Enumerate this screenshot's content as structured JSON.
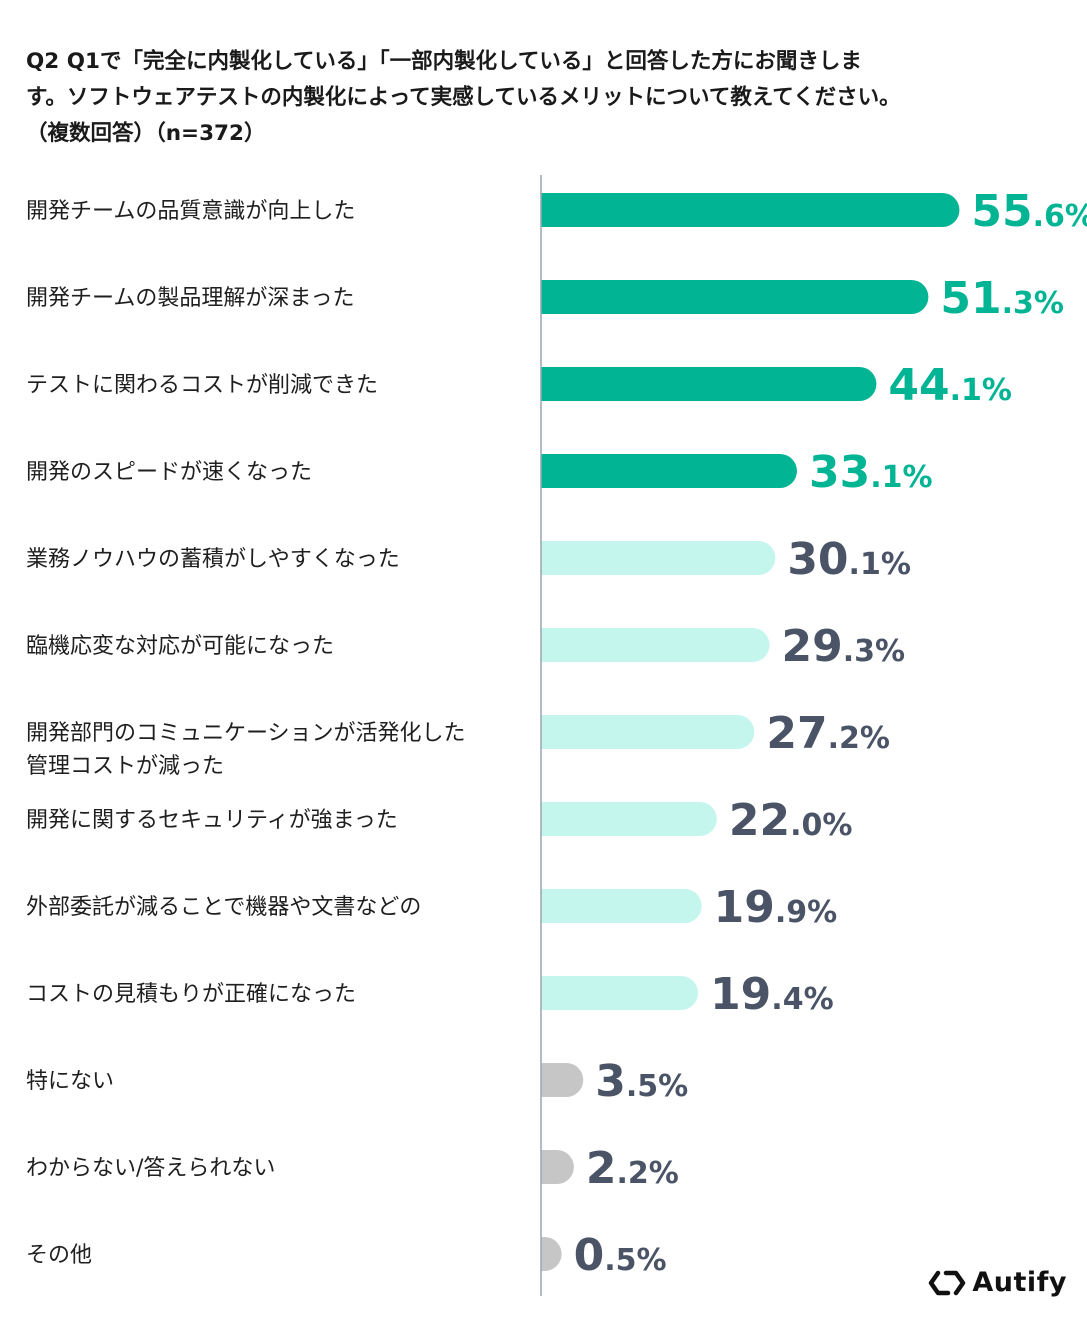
{
  "title_lines": [
    "Q2 Q1で「完全に内製化している」「一部内製化している」と回答した方にお聞きしま",
    "す。ソフトウェアテストの内製化によって実感しているメリットについて教えてください。",
    "（複数回答）（n=372）"
  ],
  "logo": {
    "text": "Autify",
    "icon": "autify-logo-icon"
  },
  "colors": {
    "dark_bar": "#00B494",
    "light_bar": "#C4F6EE",
    "gray_bar": "#C6C6C6",
    "dark_value": "#00B494",
    "light_value": "#4A5466",
    "axis": "#9aa6b2"
  },
  "chart_data": {
    "type": "bar",
    "orientation": "horizontal",
    "title": "Q2 Q1で「完全に内製化している」「一部内製化している」と回答した方にお聞きします。ソフトウェアテストの内製化によって実感しているメリットについて教えてください。（複数回答）（n=372）",
    "unit": "%",
    "categories": [
      [
        "開発チームの品質意識が向上した"
      ],
      [
        "開発チームの製品理解が深まった"
      ],
      [
        "テストに関わるコストが削減できた"
      ],
      [
        "開発のスピードが速くなった"
      ],
      [
        "業務ノウハウの蓄積がしやすくなった"
      ],
      [
        "臨機応変な対応が可能になった"
      ],
      [
        "開発部門のコミュニケーションが活発化した",
        "管理コストが減った"
      ],
      [
        "開発に関するセキュリティが強まった"
      ],
      [
        "外部委託が減ることで機器や文書などの"
      ],
      [
        "コストの見積もりが正確になった"
      ],
      [
        "特にない"
      ],
      [
        "わからない/答えられない"
      ],
      [
        "その他"
      ]
    ],
    "values": [
      55.6,
      51.3,
      44.1,
      33.1,
      30.1,
      29.3,
      27.2,
      22.0,
      19.9,
      19.4,
      3.5,
      2.2,
      0.5
    ],
    "value_labels": [
      [
        "55",
        ".6%"
      ],
      [
        "51",
        ".3%"
      ],
      [
        "44",
        ".1%"
      ],
      [
        "33",
        ".1%"
      ],
      [
        "30",
        ".1%"
      ],
      [
        "29",
        ".3%"
      ],
      [
        "27",
        ".2%"
      ],
      [
        "22",
        ".0%"
      ],
      [
        "19",
        ".9%"
      ],
      [
        "19",
        ".4%"
      ],
      [
        "3",
        ".5%"
      ],
      [
        "2",
        ".2%"
      ],
      [
        "0",
        ".5%"
      ]
    ],
    "bar_styles": [
      "dark",
      "dark",
      "dark",
      "dark",
      "light",
      "light",
      "light",
      "light",
      "light",
      "light",
      "gray",
      "gray",
      "gray"
    ]
  }
}
